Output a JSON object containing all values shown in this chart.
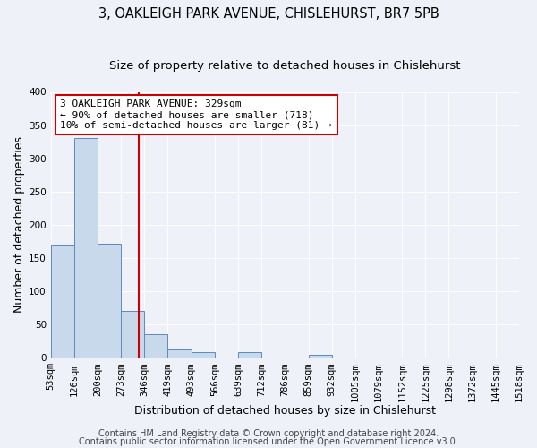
{
  "title": "3, OAKLEIGH PARK AVENUE, CHISLEHURST, BR7 5PB",
  "subtitle": "Size of property relative to detached houses in Chislehurst",
  "xlabel": "Distribution of detached houses by size in Chislehurst",
  "ylabel": "Number of detached properties",
  "bin_edges": [
    53,
    126,
    200,
    273,
    346,
    419,
    493,
    566,
    639,
    712,
    786,
    859,
    932,
    1005,
    1079,
    1152,
    1225,
    1298,
    1372,
    1445,
    1518
  ],
  "bin_labels": [
    "53sqm",
    "126sqm",
    "200sqm",
    "273sqm",
    "346sqm",
    "419sqm",
    "493sqm",
    "566sqm",
    "639sqm",
    "712sqm",
    "786sqm",
    "859sqm",
    "932sqm",
    "1005sqm",
    "1079sqm",
    "1152sqm",
    "1225sqm",
    "1298sqm",
    "1372sqm",
    "1445sqm",
    "1518sqm"
  ],
  "bar_heights": [
    170,
    330,
    172,
    70,
    35,
    13,
    9,
    0,
    8,
    0,
    0,
    4,
    0,
    0,
    0,
    0,
    0,
    0,
    0,
    0
  ],
  "bar_color": "#c9d9ec",
  "bar_edge_color": "#5b8abf",
  "vline_x": 329,
  "vline_color": "#cc0000",
  "ylim": [
    0,
    400
  ],
  "yticks": [
    0,
    50,
    100,
    150,
    200,
    250,
    300,
    350,
    400
  ],
  "annotation_line1": "3 OAKLEIGH PARK AVENUE: 329sqm",
  "annotation_line2": "← 90% of detached houses are smaller (718)",
  "annotation_line3": "10% of semi-detached houses are larger (81) →",
  "footer1": "Contains HM Land Registry data © Crown copyright and database right 2024.",
  "footer2": "Contains public sector information licensed under the Open Government Licence v3.0.",
  "background_color": "#eef2f8",
  "grid_color": "#ffffff",
  "title_fontsize": 10.5,
  "subtitle_fontsize": 9.5,
  "axis_label_fontsize": 9,
  "tick_fontsize": 7.5,
  "annotation_fontsize": 8,
  "footer_fontsize": 7
}
